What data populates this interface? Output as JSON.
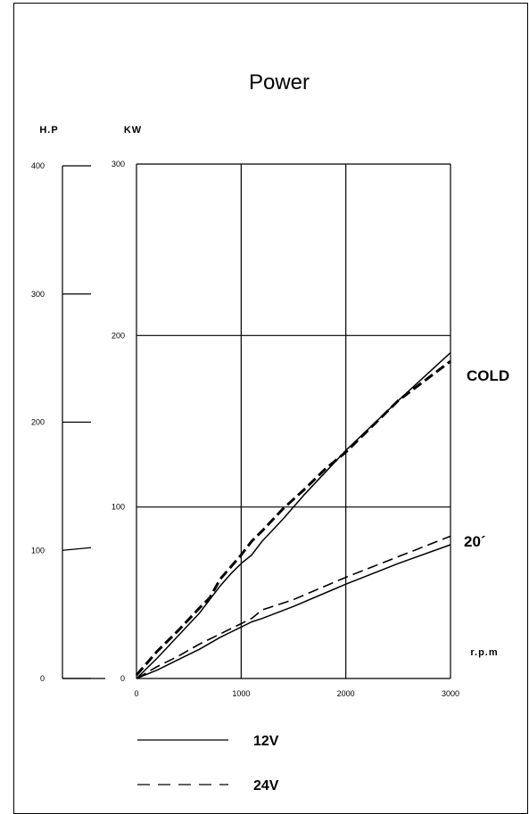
{
  "chart_data": {
    "type": "line",
    "title": "Power",
    "left_axis_label": "H.P",
    "ylabel": "KW",
    "xlabel": "r.p.m",
    "xlim": [
      0,
      3000
    ],
    "ylim": [
      0,
      300
    ],
    "hp_lim": [
      0,
      400
    ],
    "grid": true,
    "x_ticks": [
      0,
      1000,
      2000,
      3000
    ],
    "y_ticks": [
      0,
      100,
      200,
      300
    ],
    "hp_ticks": [
      0,
      100,
      200,
      300,
      400
    ],
    "annotations": [
      "COLD",
      "20´"
    ],
    "legend_entries": [
      "12V",
      "24V"
    ],
    "legend_position": "bottom",
    "series": [
      {
        "legend": "12V",
        "group": "COLD",
        "style": "solid",
        "x": [
          0,
          200,
          400,
          600,
          700,
          800,
          900,
          1000,
          1100,
          1200,
          1400,
          1600,
          1800,
          2000,
          2500,
          3000
        ],
        "y": [
          0,
          12,
          25,
          38,
          46,
          54,
          61,
          67,
          72,
          80,
          93,
          107,
          120,
          133,
          162,
          190
        ]
      },
      {
        "legend": "24V",
        "group": "COLD",
        "style": "dashed",
        "x": [
          0,
          200,
          400,
          600,
          700,
          800,
          900,
          1000,
          1100,
          1200,
          1400,
          1600,
          1800,
          2000,
          2500,
          3000
        ],
        "y": [
          2,
          16,
          28,
          41,
          47,
          58,
          65,
          72,
          80,
          86,
          99,
          110,
          122,
          132,
          162,
          185
        ]
      },
      {
        "legend": "12V",
        "group": "20´",
        "style": "solid",
        "x": [
          0,
          200,
          400,
          600,
          800,
          1000,
          1100,
          1200,
          1500,
          2000,
          2500,
          3000
        ],
        "y": [
          0,
          5,
          11,
          17,
          24,
          30,
          33,
          35,
          42,
          55,
          67,
          78
        ]
      },
      {
        "legend": "24V",
        "group": "20´",
        "style": "dashed",
        "x": [
          0,
          200,
          400,
          600,
          800,
          1000,
          1100,
          1200,
          1500,
          2000,
          2500,
          3000
        ],
        "y": [
          0,
          7,
          13,
          20,
          26,
          32,
          35,
          40,
          46,
          59,
          71,
          83
        ]
      }
    ]
  },
  "colors": {
    "line": "#000000",
    "background": "#ffffff"
  }
}
